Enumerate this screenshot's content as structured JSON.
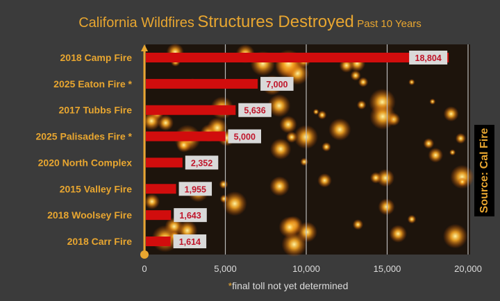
{
  "chart_data": {
    "type": "bar",
    "orientation": "horizontal",
    "title": {
      "part1": "California Wildfires",
      "part2": "Structures Destroyed",
      "part3": "Past 10 Years"
    },
    "categories": [
      "2018 Camp Fire",
      "2025 Eaton Fire *",
      "2017 Tubbs Fire",
      "2025 Palisades Fire *",
      "2020 North Complex",
      "2015 Valley Fire",
      "2018 Woolsey Fire",
      "2018 Carr Fire"
    ],
    "values": [
      18804,
      7000,
      5636,
      5000,
      2352,
      1955,
      1643,
      1614
    ],
    "data_labels": [
      "18,804",
      "7,000",
      "5,636",
      "5,000",
      "2,352",
      "1,955",
      "1,643",
      "1,614"
    ],
    "xlim": [
      0,
      20000
    ],
    "x_ticks": [
      "0",
      "5,000",
      "10,000",
      "15,000",
      "20,000"
    ],
    "grid": true,
    "note_star": "*",
    "note": "final toll not yet determined",
    "source": "Source: Cal Fire",
    "colors": {
      "bar": "#d10d0d",
      "text": "#e8a630",
      "label_box": "#d9d9d9",
      "label_text": "#c0152a",
      "background": "#3b3b3b"
    }
  }
}
